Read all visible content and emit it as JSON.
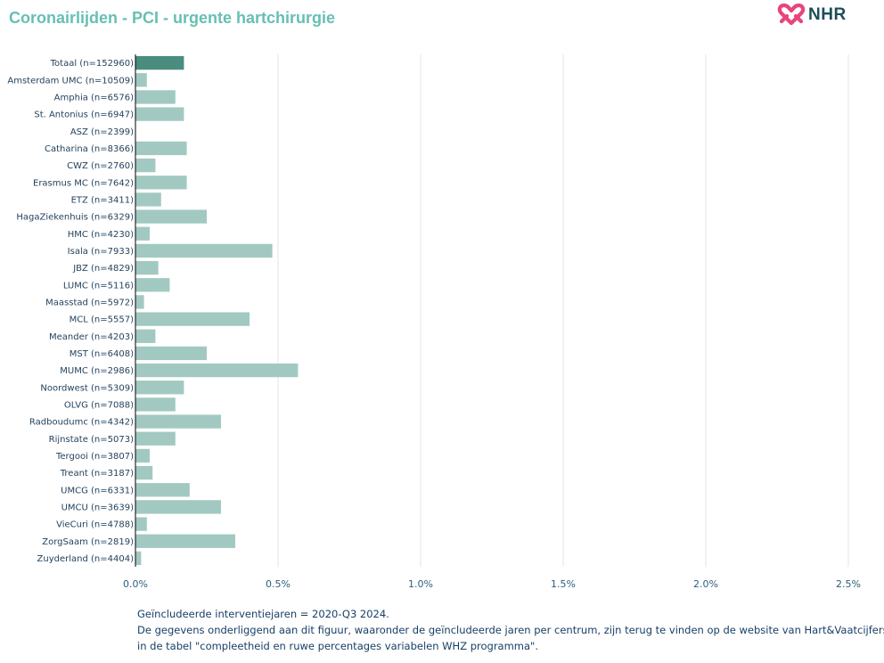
{
  "header": {
    "title": "Coronairlijden - PCI - urgente hartchirurgie",
    "logo_text": "NHR"
  },
  "colors": {
    "title": "#67bfb3",
    "total_bar": "#4a8c7e",
    "center_bar": "#a2c9c1",
    "logo_mark": "#e8457d",
    "logo_text": "#1b4e57"
  },
  "chart_data": {
    "type": "bar",
    "orientation": "horizontal",
    "categories": [
      "Totaal (n=152960)",
      "Amsterdam UMC (n=10509)",
      "Amphia (n=6576)",
      "St. Antonius (n=6947)",
      "ASZ (n=2399)",
      "Catharina (n=8366)",
      "CWZ (n=2760)",
      "Erasmus MC (n=7642)",
      "ETZ (n=3411)",
      "HagaZiekenhuis (n=6329)",
      "HMC (n=4230)",
      "Isala (n=7933)",
      "JBZ (n=4829)",
      "LUMC (n=5116)",
      "Maasstad (n=5972)",
      "MCL (n=5557)",
      "Meander (n=4203)",
      "MST (n=6408)",
      "MUMC (n=2986)",
      "Noordwest (n=5309)",
      "OLVG (n=7088)",
      "Radboudumc (n=4342)",
      "Rijnstate (n=5073)",
      "Tergooi (n=3807)",
      "Treant (n=3187)",
      "UMCG (n=6331)",
      "UMCU (n=3639)",
      "VieCuri (n=4788)",
      "ZorgSaam (n=2819)",
      "Zuyderland (n=4404)"
    ],
    "values": [
      0.17,
      0.04,
      0.14,
      0.17,
      0.0,
      0.18,
      0.07,
      0.18,
      0.09,
      0.25,
      0.05,
      0.48,
      0.08,
      0.12,
      0.03,
      0.4,
      0.07,
      0.25,
      0.57,
      0.17,
      0.14,
      0.3,
      0.14,
      0.05,
      0.06,
      0.19,
      0.3,
      0.04,
      0.35,
      0.02
    ],
    "unit": "%",
    "xlim": [
      0,
      2.5
    ],
    "xticks": [
      0,
      0.5,
      1.0,
      1.5,
      2.0,
      2.5
    ],
    "xtick_labels": [
      "0.0%",
      "0.5%",
      "1.0%",
      "1.5%",
      "2.0%",
      "2.5%"
    ],
    "grid": "vertical",
    "legend": "none",
    "highlight_category": "Totaal (n=152960)"
  },
  "footer": {
    "line1": "Geïncludeerde interventiejaren = 2020-Q3 2024.",
    "line2": "De gegevens onderliggend aan dit figuur, waaronder de geïncludeerde jaren per centrum, zijn terug te vinden op de website van Hart&Vaatcijfers",
    "line3": "in de tabel \"compleetheid en ruwe percentages variabelen WHZ programma\"."
  }
}
